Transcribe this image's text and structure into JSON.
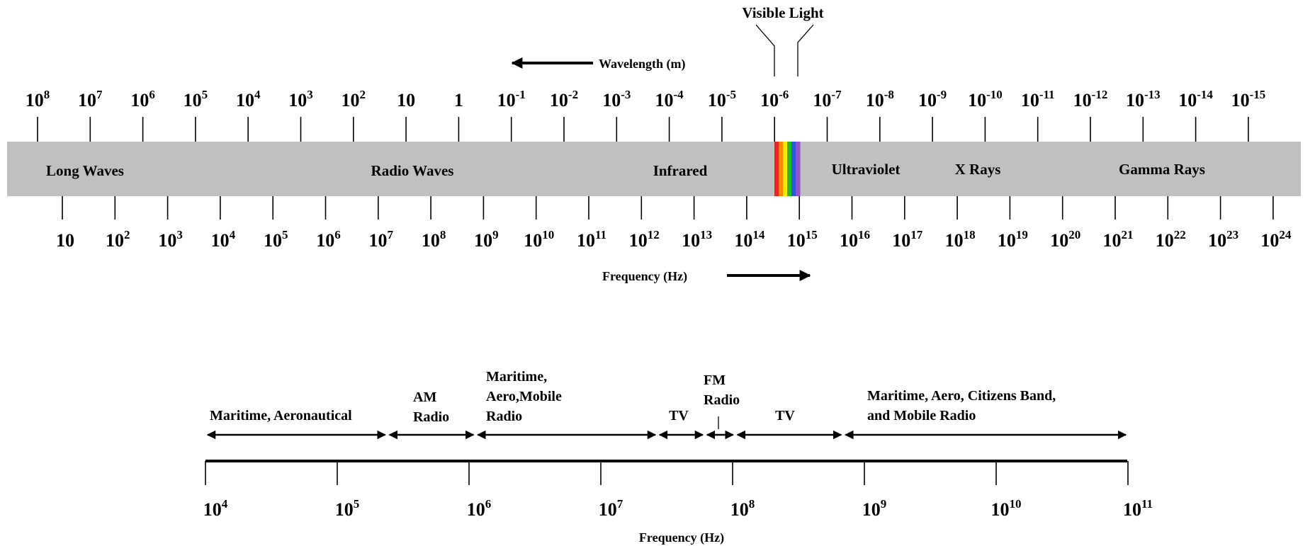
{
  "spectrum": {
    "title_visible": "Visible Light",
    "wavelength_label": "Wavelength (m)",
    "frequency_label": "Frequency (Hz)",
    "wavelength_ticks": [
      {
        "base": "10",
        "exp": "8"
      },
      {
        "base": "10",
        "exp": "7"
      },
      {
        "base": "10",
        "exp": "6"
      },
      {
        "base": "10",
        "exp": "5"
      },
      {
        "base": "10",
        "exp": "4"
      },
      {
        "base": "10",
        "exp": "3"
      },
      {
        "base": "10",
        "exp": "2"
      },
      {
        "base": "10",
        "exp": ""
      },
      {
        "base": "1",
        "exp": ""
      },
      {
        "base": "10",
        "exp": "-1"
      },
      {
        "base": "10",
        "exp": "-2"
      },
      {
        "base": "10",
        "exp": "-3"
      },
      {
        "base": "10",
        "exp": "-4"
      },
      {
        "base": "10",
        "exp": "-5"
      },
      {
        "base": "10",
        "exp": "-6"
      },
      {
        "base": "10",
        "exp": "-7"
      },
      {
        "base": "10",
        "exp": "-8"
      },
      {
        "base": "10",
        "exp": "-9"
      },
      {
        "base": "10",
        "exp": "-10"
      },
      {
        "base": "10",
        "exp": "-11"
      },
      {
        "base": "10",
        "exp": "-12"
      },
      {
        "base": "10",
        "exp": "-13"
      },
      {
        "base": "10",
        "exp": "-14"
      },
      {
        "base": "10",
        "exp": "-15"
      }
    ],
    "frequency_ticks": [
      {
        "base": "10",
        "exp": ""
      },
      {
        "base": "10",
        "exp": "2"
      },
      {
        "base": "10",
        "exp": "3"
      },
      {
        "base": "10",
        "exp": "4"
      },
      {
        "base": "10",
        "exp": "5"
      },
      {
        "base": "10",
        "exp": "6"
      },
      {
        "base": "10",
        "exp": "7"
      },
      {
        "base": "10",
        "exp": "8"
      },
      {
        "base": "10",
        "exp": "9"
      },
      {
        "base": "10",
        "exp": "10"
      },
      {
        "base": "10",
        "exp": "11"
      },
      {
        "base": "10",
        "exp": "12"
      },
      {
        "base": "10",
        "exp": "13"
      },
      {
        "base": "10",
        "exp": "14"
      },
      {
        "base": "10",
        "exp": "15"
      },
      {
        "base": "10",
        "exp": "16"
      },
      {
        "base": "10",
        "exp": "17"
      },
      {
        "base": "10",
        "exp": "18"
      },
      {
        "base": "10",
        "exp": "19"
      },
      {
        "base": "10",
        "exp": "20"
      },
      {
        "base": "10",
        "exp": "21"
      },
      {
        "base": "10",
        "exp": "22"
      },
      {
        "base": "10",
        "exp": "23"
      },
      {
        "base": "10",
        "exp": "24"
      }
    ],
    "bands": [
      "Long Waves",
      "Radio Waves",
      "Infrared",
      "Ultraviolet",
      "X Rays",
      "Gamma Rays"
    ],
    "bar_color": "#c0c0c0",
    "visible_colors": [
      "#ee2222",
      "#ff8a00",
      "#ffe600",
      "#22bb22",
      "#2a5bd7",
      "#9b4fc8"
    ]
  },
  "allocation": {
    "frequency_label": "Frequency (Hz)",
    "ticks": [
      {
        "base": "10",
        "exp": "4"
      },
      {
        "base": "10",
        "exp": "5"
      },
      {
        "base": "10",
        "exp": "6"
      },
      {
        "base": "10",
        "exp": "7"
      },
      {
        "base": "10",
        "exp": "8"
      },
      {
        "base": "10",
        "exp": "9"
      },
      {
        "base": "10",
        "exp": "10"
      },
      {
        "base": "10",
        "exp": "11"
      }
    ],
    "services": [
      {
        "lines": [
          "Maritime, Aeronautical"
        ]
      },
      {
        "lines": [
          "AM",
          "Radio"
        ]
      },
      {
        "lines": [
          "Maritime,",
          "Aero,Mobile",
          "Radio"
        ]
      },
      {
        "lines": [
          "TV"
        ]
      },
      {
        "lines": [
          "FM",
          "Radio"
        ]
      },
      {
        "lines": [
          "TV"
        ]
      },
      {
        "lines": [
          "Maritime, Aero, Citizens Band,",
          "and Mobile Radio"
        ]
      }
    ]
  }
}
